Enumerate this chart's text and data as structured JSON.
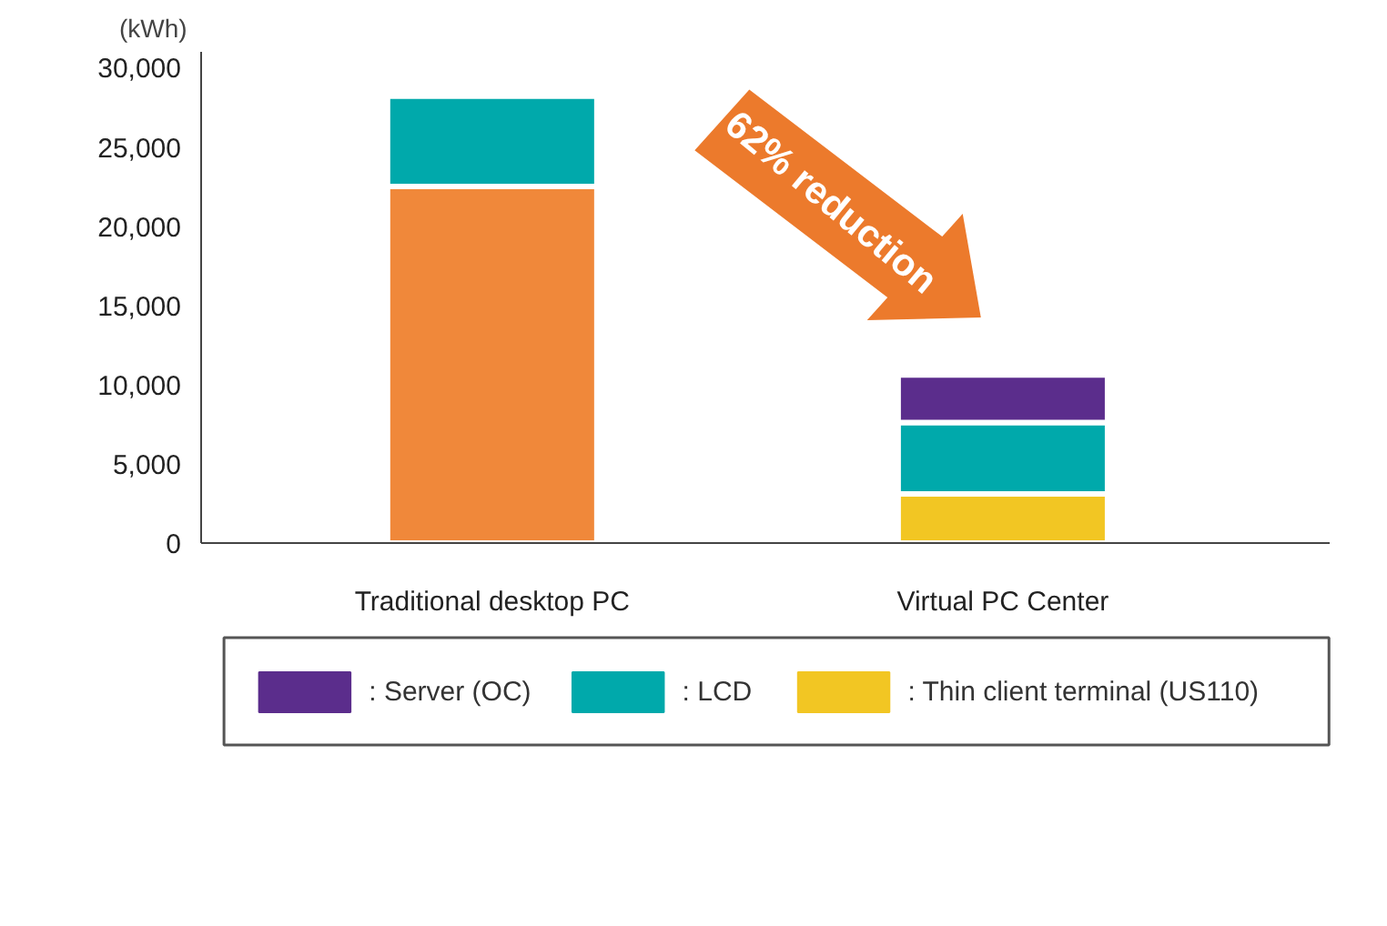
{
  "chart_data": {
    "type": "bar",
    "stacked": true,
    "ylabel": "(kWh)",
    "categories": [
      "Traditional desktop PC",
      "Virtual PC Center"
    ],
    "series": [
      {
        "color": "#f0883a",
        "values": [
          22500,
          null
        ]
      },
      {
        "name": ": Thin client terminal (US110)",
        "color": "#f2c623",
        "values": [
          null,
          3100
        ]
      },
      {
        "name": ": LCD",
        "color": "#00a9ab",
        "values": [
          5700,
          4500
        ]
      },
      {
        "name": ": Server (OC)",
        "color": "#5b2d8c",
        "values": [
          null,
          3000
        ]
      }
    ],
    "ylim": [
      0,
      31000
    ],
    "yticks": [
      0,
      {
        "value": 5000,
        "label": "5,000"
      },
      {
        "value": 10000,
        "label": "10,000"
      },
      {
        "value": 15000,
        "label": "15,000"
      },
      {
        "value": 20000,
        "label": "20,000"
      },
      {
        "value": 25000,
        "label": "25,000"
      },
      {
        "value": 30000,
        "label": "30,000"
      }
    ],
    "grid": false,
    "legend": "bottom",
    "annotations": [
      "62% reduction"
    ]
  }
}
